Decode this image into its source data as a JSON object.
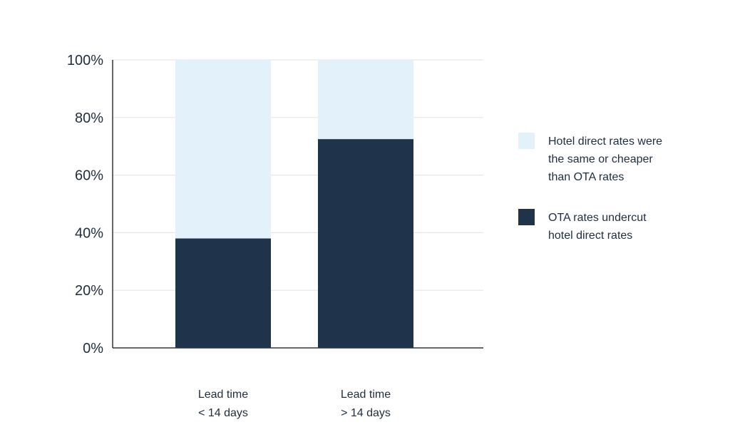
{
  "chart_data": {
    "type": "bar",
    "stacked": true,
    "categories": [
      [
        "Lead time",
        "< 14 days"
      ],
      [
        "Lead time",
        "> 14 days"
      ]
    ],
    "series": [
      {
        "name": "OTA rates undercut hotel direct rates",
        "legend_lines": [
          "OTA rates undercut",
          "hotel direct rates"
        ],
        "values": [
          38,
          72.5
        ],
        "color": "#1f344a"
      },
      {
        "name": "Hotel direct rates were the same or cheaper than OTA rates",
        "legend_lines": [
          "Hotel direct rates were",
          "the same or cheaper",
          "than OTA rates"
        ],
        "values": [
          62,
          27.5
        ],
        "color": "#e3f1fa"
      }
    ],
    "ylim": [
      0,
      100
    ],
    "yticks": [
      0,
      20,
      40,
      60,
      80,
      100
    ],
    "ytick_labels": [
      "0%",
      "20%",
      "40%",
      "60%",
      "80%",
      "100%"
    ],
    "grid": true,
    "legend_position": "right"
  }
}
